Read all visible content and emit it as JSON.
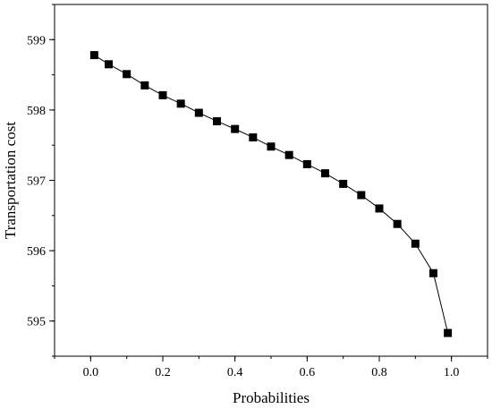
{
  "chart_data": {
    "type": "line",
    "title": "",
    "xlabel": "Probabilities",
    "ylabel": "Transportation cost",
    "xlim": [
      -0.1,
      1.1
    ],
    "ylim": [
      594.5,
      599.5
    ],
    "xticks": [
      0.0,
      0.2,
      0.4,
      0.6,
      0.8,
      1.0
    ],
    "xtick_labels": [
      "0.0",
      "0.2",
      "0.4",
      "0.6",
      "0.8",
      "1.0"
    ],
    "yticks": [
      595,
      596,
      597,
      598,
      599
    ],
    "ytick_labels": [
      "595",
      "596",
      "597",
      "598",
      "599"
    ],
    "grid": false,
    "legend": "none",
    "marker": "square",
    "line_color": "#000000",
    "marker_color": "#000000",
    "series": [
      {
        "x": [
          0.01,
          0.05,
          0.1,
          0.15,
          0.2,
          0.25,
          0.3,
          0.35,
          0.4,
          0.45,
          0.5,
          0.55,
          0.6,
          0.65,
          0.7,
          0.75,
          0.8,
          0.85,
          0.9,
          0.95,
          0.99
        ],
        "y": [
          598.78,
          598.65,
          598.51,
          598.35,
          598.21,
          598.09,
          597.96,
          597.84,
          597.73,
          597.61,
          597.48,
          597.36,
          597.23,
          597.1,
          596.95,
          596.79,
          596.6,
          596.38,
          596.1,
          595.68,
          594.83
        ]
      }
    ]
  }
}
